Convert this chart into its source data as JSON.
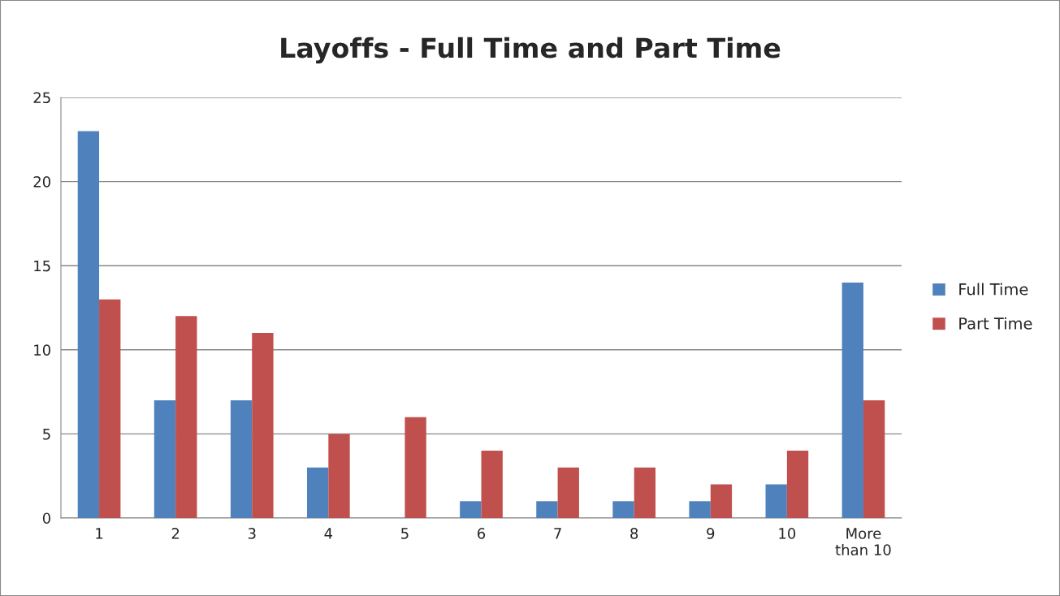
{
  "chart_data": {
    "type": "bar",
    "title": "Layoffs - Full Time and Part Time",
    "categories": [
      "1",
      "2",
      "3",
      "4",
      "5",
      "6",
      "7",
      "8",
      "9",
      "10",
      "More\nthan 10"
    ],
    "series": [
      {
        "name": "Full Time",
        "color": "#4f81bd",
        "values": [
          23,
          7,
          7,
          3,
          0,
          1,
          1,
          1,
          1,
          2,
          14
        ]
      },
      {
        "name": "Part Time",
        "color": "#c0504d",
        "values": [
          13,
          12,
          11,
          5,
          6,
          4,
          3,
          3,
          2,
          4,
          7
        ]
      }
    ],
    "ylim": [
      0,
      25
    ],
    "yticks": [
      0,
      5,
      10,
      15,
      20,
      25
    ],
    "grid": "y",
    "legend": "right"
  }
}
